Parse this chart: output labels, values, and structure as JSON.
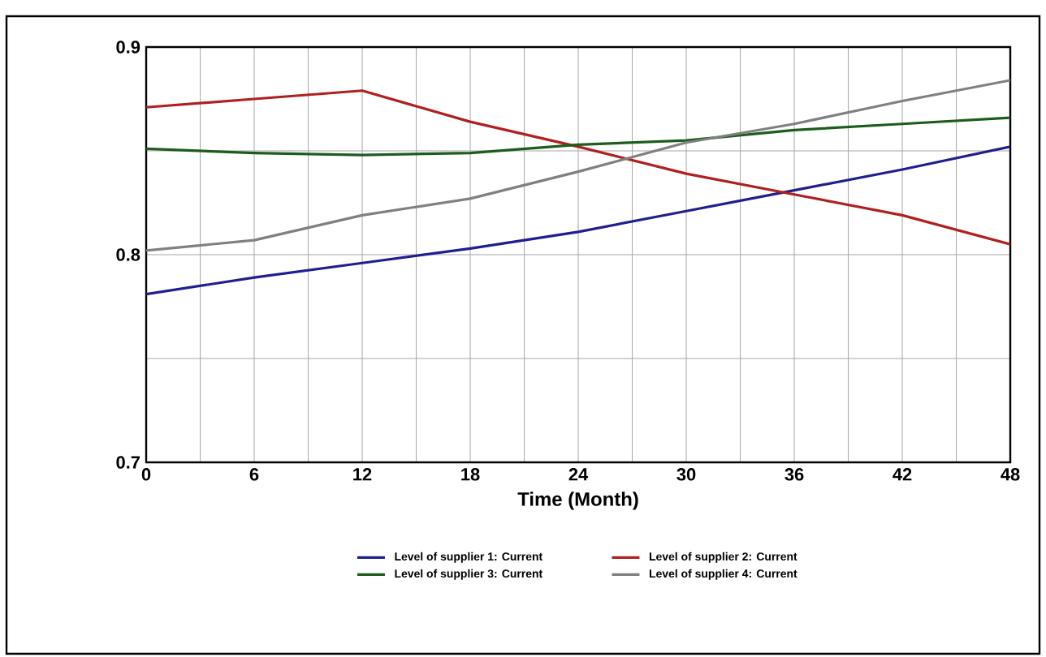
{
  "chart_data": {
    "type": "line",
    "xlabel": "Time (Month)",
    "x": [
      0,
      6,
      12,
      18,
      24,
      30,
      36,
      42,
      48
    ],
    "series": [
      {
        "name": "Level of supplier 1: Current",
        "color": "#1f1f8f",
        "values": [
          0.781,
          0.789,
          0.796,
          0.803,
          0.811,
          0.821,
          0.831,
          0.841,
          0.852
        ]
      },
      {
        "name": "Level of supplier 2: Current",
        "color": "#b02020",
        "values": [
          0.871,
          0.875,
          0.879,
          0.864,
          0.852,
          0.839,
          0.829,
          0.819,
          0.805
        ]
      },
      {
        "name": "Level of supplier 3: Current",
        "color": "#1e5c1e",
        "values": [
          0.851,
          0.849,
          0.848,
          0.849,
          0.853,
          0.855,
          0.86,
          0.863,
          0.866
        ]
      },
      {
        "name": "Level of supplier 4: Current",
        "color": "#808080",
        "values": [
          0.802,
          0.807,
          0.819,
          0.827,
          0.84,
          0.854,
          0.863,
          0.874,
          0.884
        ]
      }
    ],
    "xlim": [
      0,
      48
    ],
    "ylim": [
      0.7,
      0.9
    ],
    "xticks": [
      0,
      {
        "value": 3,
        "label": null
      },
      6,
      {
        "value": 9,
        "label": null
      },
      12,
      {
        "value": 15,
        "label": null
      },
      18,
      {
        "value": 21,
        "label": null
      },
      24,
      {
        "value": 27,
        "label": null
      },
      30,
      {
        "value": 33,
        "label": null
      },
      36,
      {
        "value": 39,
        "label": null
      },
      42,
      {
        "value": 45,
        "label": null
      },
      48
    ],
    "yticks": [
      0.7,
      {
        "value": 0.75,
        "label": null
      },
      0.8,
      {
        "value": 0.85,
        "label": null
      },
      0.9
    ],
    "grid": true,
    "legend": "bottom",
    "line_style": "solid"
  }
}
